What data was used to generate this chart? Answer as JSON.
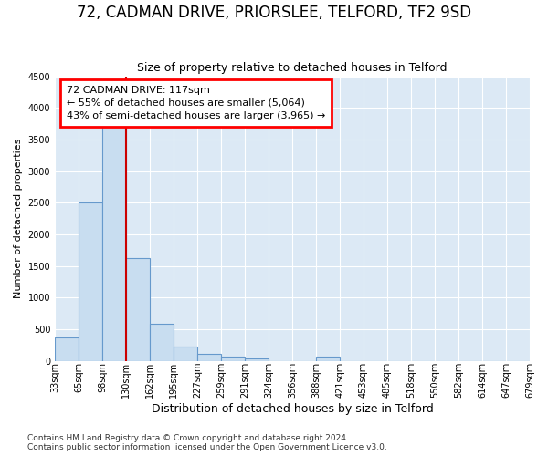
{
  "title": "72, CADMAN DRIVE, PRIORSLEE, TELFORD, TF2 9SD",
  "subtitle": "Size of property relative to detached houses in Telford",
  "xlabel": "Distribution of detached houses by size in Telford",
  "ylabel": "Number of detached properties",
  "footnote1": "Contains HM Land Registry data © Crown copyright and database right 2024.",
  "footnote2": "Contains public sector information licensed under the Open Government Licence v3.0.",
  "bin_labels": [
    "33sqm",
    "65sqm",
    "98sqm",
    "130sqm",
    "162sqm",
    "195sqm",
    "227sqm",
    "259sqm",
    "291sqm",
    "324sqm",
    "356sqm",
    "388sqm",
    "421sqm",
    "453sqm",
    "485sqm",
    "518sqm",
    "550sqm",
    "582sqm",
    "614sqm",
    "647sqm",
    "679sqm"
  ],
  "bar_values": [
    370,
    2500,
    3700,
    1630,
    590,
    230,
    110,
    65,
    40,
    0,
    0,
    60,
    0,
    0,
    0,
    0,
    0,
    0,
    0,
    0
  ],
  "bar_color": "#c8ddf0",
  "bar_edge_color": "#6699cc",
  "vline_x_bin": 3,
  "vline_color": "#cc0000",
  "annotation_line1": "72 CADMAN DRIVE: 117sqm",
  "annotation_line2": "← 55% of detached houses are smaller (5,064)",
  "annotation_line3": "43% of semi-detached houses are larger (3,965) →",
  "ylim": [
    0,
    4500
  ],
  "yticks": [
    0,
    500,
    1000,
    1500,
    2000,
    2500,
    3000,
    3500,
    4000,
    4500
  ],
  "bg_color": "#dce9f5",
  "grid_color": "#ffffff",
  "title_fontsize": 12,
  "subtitle_fontsize": 9,
  "ylabel_fontsize": 8,
  "xlabel_fontsize": 9,
  "tick_fontsize": 7,
  "annot_fontsize": 8,
  "footnote_fontsize": 6.5
}
